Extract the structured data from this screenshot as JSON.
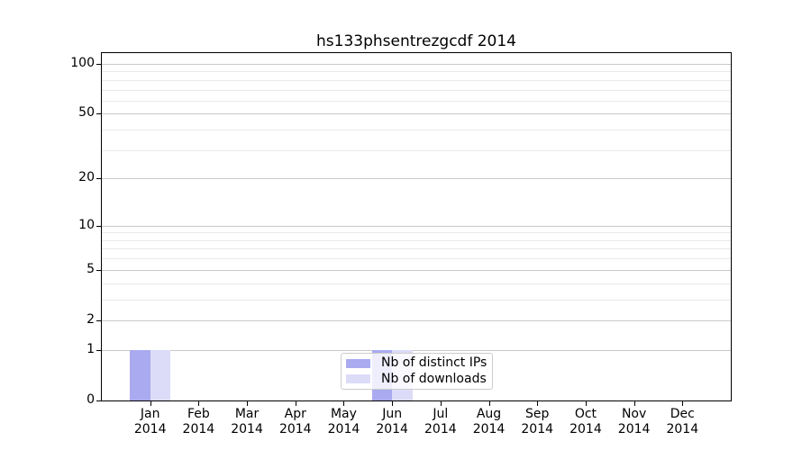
{
  "chart_data": {
    "type": "bar",
    "title": "hs133phsentrezgcdf 2014",
    "categories": [
      "Jan",
      "Feb",
      "Mar",
      "Apr",
      "May",
      "Jun",
      "Jul",
      "Aug",
      "Sep",
      "Oct",
      "Nov",
      "Dec"
    ],
    "x_sublabel": "2014",
    "series": [
      {
        "name": "Nb of distinct IPs",
        "color": "#aaaaf0",
        "values": [
          1,
          0,
          0,
          0,
          0,
          1,
          0,
          0,
          0,
          0,
          0,
          0
        ]
      },
      {
        "name": "Nb of downloads",
        "color": "#dcdcf8",
        "values": [
          1,
          0,
          0,
          0,
          0,
          1,
          0,
          0,
          0,
          0,
          0,
          0
        ]
      }
    ],
    "yscale": "log1p",
    "y_major_ticks": [
      0,
      1,
      2,
      5,
      10,
      20,
      50,
      100
    ],
    "y_minor_ticks": [
      3,
      4,
      6,
      7,
      8,
      9,
      30,
      40,
      60,
      70,
      80,
      90
    ],
    "ylim": [
      0,
      116
    ],
    "xlim": [
      -1,
      12
    ],
    "grid": true,
    "legend_position": "lower center",
    "colors": {
      "major_grid": "#c9c9c9",
      "minor_grid": "#e9e9e9",
      "axis": "#000000",
      "background": "#ffffff"
    }
  }
}
